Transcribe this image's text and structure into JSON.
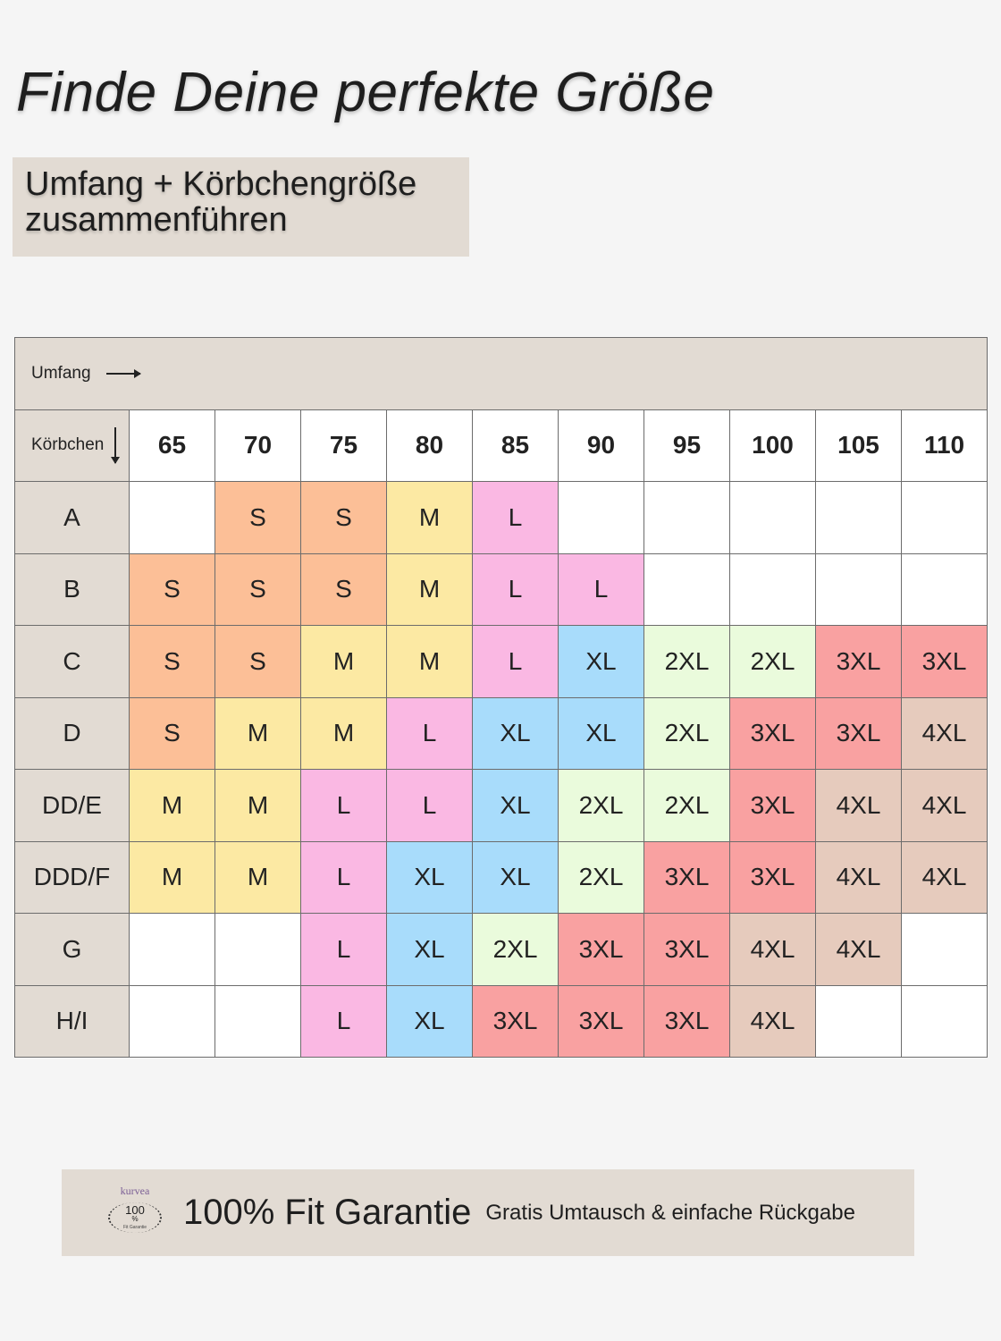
{
  "title": "Finde Deine perfekte Größe",
  "subtitle": {
    "line1": "Umfang + Körbchengröße",
    "line2": "zusammenführen"
  },
  "table": {
    "umfang_label": "Umfang",
    "koerbchen_label": "Körbchen",
    "columns": [
      "65",
      "70",
      "75",
      "80",
      "85",
      "90",
      "95",
      "100",
      "105",
      "110"
    ],
    "rows": [
      {
        "cup": "A",
        "sizes": [
          "",
          "S",
          "S",
          "M",
          "L",
          "",
          "",
          "",
          "",
          ""
        ]
      },
      {
        "cup": "B",
        "sizes": [
          "S",
          "S",
          "S",
          "M",
          "L",
          "L",
          "",
          "",
          "",
          ""
        ]
      },
      {
        "cup": "C",
        "sizes": [
          "S",
          "S",
          "M",
          "M",
          "L",
          "XL",
          "2XL",
          "2XL",
          "3XL",
          "3XL"
        ]
      },
      {
        "cup": "D",
        "sizes": [
          "S",
          "M",
          "M",
          "L",
          "XL",
          "XL",
          "2XL",
          "3XL",
          "3XL",
          "4XL"
        ]
      },
      {
        "cup": "DD/E",
        "sizes": [
          "M",
          "M",
          "L",
          "L",
          "XL",
          "2XL",
          "2XL",
          "3XL",
          "4XL",
          "4XL"
        ]
      },
      {
        "cup": "DDD/F",
        "sizes": [
          "M",
          "M",
          "L",
          "XL",
          "XL",
          "2XL",
          "3XL",
          "3XL",
          "4XL",
          "4XL"
        ]
      },
      {
        "cup": "G",
        "sizes": [
          "",
          "",
          "L",
          "XL",
          "2XL",
          "3XL",
          "3XL",
          "4XL",
          "4XL",
          ""
        ]
      },
      {
        "cup": "H/I",
        "sizes": [
          "",
          "",
          "L",
          "XL",
          "3XL",
          "3XL",
          "3XL",
          "4XL",
          "",
          ""
        ]
      }
    ]
  },
  "size_colors": {
    "S": "#fcbf97",
    "M": "#fce9a3",
    "L": "#fab8e3",
    "XL": "#a8dcfb",
    "2XL": "#eafbdc",
    "3XL": "#f9a1a1",
    "4XL": "#e6cbbd"
  },
  "banner": {
    "seal_brand": "kurvea",
    "seal_number": "100",
    "seal_percent": "%",
    "seal_caption": "Fit Garantie",
    "title": "100% Fit Garantie",
    "subtitle": "Gratis Umtausch & einfache Rückgabe"
  }
}
